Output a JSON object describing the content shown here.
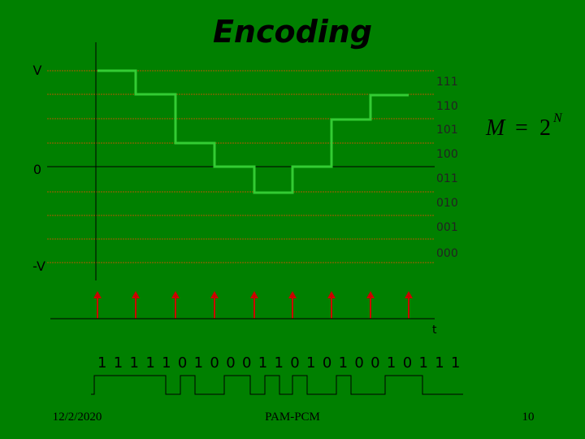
{
  "title": "Encoding",
  "axis_labels": {
    "top": "V",
    "zero": "0",
    "bottom": "-V",
    "time": "t"
  },
  "levels": [
    "111",
    "110",
    "101",
    "100",
    "011",
    "010",
    "001",
    "000"
  ],
  "formula": {
    "lhs": "M",
    "operator": "=",
    "base": "2",
    "exponent": "N"
  },
  "bits": "1 1 1 1 1 0 1 0 0 0 1 1 0 1 0 1 0 0 1 0 1 1 1",
  "footer": {
    "date": "12/2/2020",
    "center": "PAM-PCM",
    "page": "10"
  }
}
